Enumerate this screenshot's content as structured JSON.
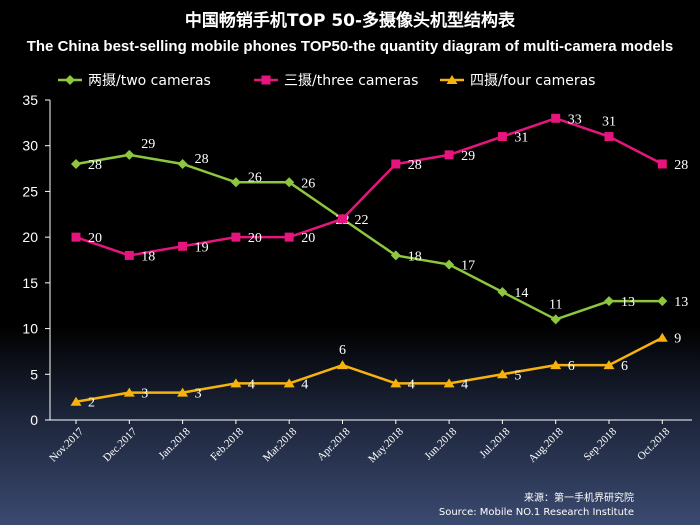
{
  "chart_data": {
    "type": "line",
    "title": "中国畅销手机TOP 50-多摄像头机型结构表",
    "subtitle": "The China best-selling mobile phones TOP50-the quantity diagram of multi-camera models",
    "categories": [
      "Nov.2017",
      "Dec.2017",
      "Jan.2018",
      "Feb.2018",
      "Mar.2018",
      "Apr.2018",
      "May.2018",
      "Jun.2018",
      "Jul.2018",
      "Aug.2018",
      "Sep.2018",
      "Oct.2018"
    ],
    "series": [
      {
        "name": "两摄/two cameras",
        "color": "#8dc63f",
        "marker": "diamond",
        "values": [
          28,
          29,
          28,
          26,
          26,
          22,
          18,
          17,
          14,
          11,
          13,
          13
        ]
      },
      {
        "name": "三摄/three cameras",
        "color": "#e6157e",
        "marker": "square",
        "values": [
          20,
          18,
          19,
          20,
          20,
          22,
          28,
          29,
          31,
          33,
          31,
          28
        ]
      },
      {
        "name": "四摄/four cameras",
        "color": "#f7b20e",
        "marker": "triangle",
        "values": [
          2,
          3,
          3,
          4,
          4,
          6,
          4,
          4,
          5,
          6,
          6,
          9
        ]
      }
    ],
    "ylim": [
      0,
      35
    ],
    "yticks": [
      0,
      5,
      10,
      15,
      20,
      25,
      30,
      35
    ],
    "grid": false,
    "legend_position": "top",
    "xlabel": "",
    "ylabel": ""
  },
  "source": {
    "line1": "来源：第一手机界研究院",
    "line2": "Source: Mobile NO.1 Research Institute"
  }
}
